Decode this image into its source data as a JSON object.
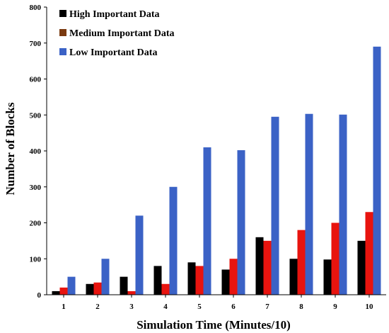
{
  "chart_data": {
    "type": "bar",
    "xlabel": "Simulation Time (Minutes/10)",
    "ylabel": "Number of Blocks",
    "ylim": [
      0,
      800
    ],
    "yticks": [
      0,
      100,
      200,
      300,
      400,
      500,
      600,
      700,
      800
    ],
    "categories": [
      "1",
      "2",
      "3",
      "4",
      "5",
      "6",
      "7",
      "8",
      "9",
      "10"
    ],
    "legend_position": "top-left",
    "grid": false,
    "series": [
      {
        "name": "High Important Data",
        "color": "#000000",
        "values": [
          10,
          30,
          50,
          80,
          90,
          70,
          160,
          100,
          98,
          150
        ]
      },
      {
        "name": "Medium Important Data",
        "color": "#e8140f",
        "values": [
          20,
          34,
          10,
          30,
          80,
          100,
          150,
          180,
          200,
          230
        ]
      },
      {
        "name": "Low Important Data",
        "color": "#3b62c6",
        "values": [
          50,
          100,
          220,
          300,
          410,
          402,
          495,
          503,
          501,
          690
        ]
      }
    ],
    "legend_swatch_colors": [
      "#000000",
      "#7a3a10",
      "#3b62c6"
    ]
  }
}
